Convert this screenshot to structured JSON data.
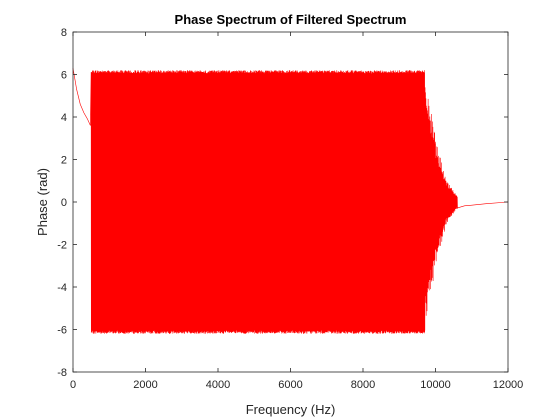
{
  "chart_data": {
    "type": "line",
    "title": "Phase Spectrum of Filtered Spectrum",
    "xlabel": "Frequency (Hz)",
    "ylabel": "Phase (rad)",
    "xlim": [
      0,
      12000
    ],
    "ylim": [
      -8,
      8
    ],
    "xticks": [
      0,
      2000,
      4000,
      6000,
      8000,
      10000,
      12000
    ],
    "yticks": [
      -8,
      -6,
      -4,
      -2,
      0,
      2,
      4,
      6,
      8
    ],
    "xtick_labels": [
      "0",
      "2000",
      "4000",
      "6000",
      "8000",
      "10000",
      "12000"
    ],
    "ytick_labels": [
      "-8",
      "-6",
      "-4",
      "-2",
      "0",
      "2",
      "4",
      "6",
      "8"
    ],
    "grid": false,
    "series": [
      {
        "name": "phase",
        "color": "#ff0000",
        "description_points": {
          "start_decay": {
            "x": [
              0,
              100,
              200,
              300,
              400,
              480
            ],
            "y": [
              6.3,
              5.3,
              4.6,
              4.2,
              3.9,
              3.6
            ]
          },
          "passband_range": {
            "x": [
              500,
              9700
            ],
            "y_min": -6.2,
            "y_max": 6.2
          },
          "transition": {
            "x": [
              9700,
              10000,
              10300,
              10600
            ],
            "y_amp": [
              6.2,
              3.0,
              1.0,
              0.3
            ]
          },
          "tail": {
            "x": [
              10800,
              11000,
              11400,
              12000
            ],
            "y": [
              -0.18,
              -0.15,
              -0.08,
              0.0
            ]
          }
        }
      }
    ]
  }
}
